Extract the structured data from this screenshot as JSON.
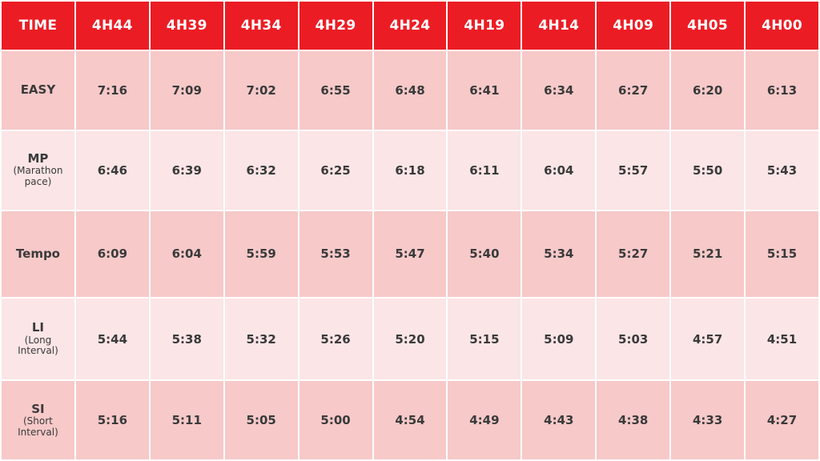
{
  "header": {
    "label": "TIME",
    "times": [
      "4H44",
      "4H39",
      "4H34",
      "4H29",
      "4H24",
      "4H19",
      "4H14",
      "4H09",
      "4H05",
      "4H00"
    ]
  },
  "rows": [
    {
      "name": "EASY",
      "sub": "",
      "values": [
        "7:16",
        "7:09",
        "7:02",
        "6:55",
        "6:48",
        "6:41",
        "6:34",
        "6:27",
        "6:20",
        "6:13"
      ]
    },
    {
      "name": "MP",
      "sub": "(Marathon pace)",
      "values": [
        "6:46",
        "6:39",
        "6:32",
        "6:25",
        "6:18",
        "6:11",
        "6:04",
        "5:57",
        "5:50",
        "5:43"
      ]
    },
    {
      "name": "Tempo",
      "sub": "",
      "values": [
        "6:09",
        "6:04",
        "5:59",
        "5:53",
        "5:47",
        "5:40",
        "5:34",
        "5:27",
        "5:21",
        "5:15"
      ]
    },
    {
      "name": "LI",
      "sub": "(Long Interval)",
      "values": [
        "5:44",
        "5:38",
        "5:32",
        "5:26",
        "5:20",
        "5:15",
        "5:09",
        "5:03",
        "4:57",
        "4:51"
      ]
    },
    {
      "name": "SI",
      "sub": "(Short Interval)",
      "values": [
        "5:16",
        "5:11",
        "5:05",
        "5:00",
        "4:54",
        "4:49",
        "4:43",
        "4:38",
        "4:33",
        "4:27"
      ]
    }
  ],
  "colors": {
    "header_bg": "#ec1c24",
    "row_dark": "#f7c9c9",
    "row_light": "#fbe5e6",
    "text": "#3a3a3a"
  }
}
